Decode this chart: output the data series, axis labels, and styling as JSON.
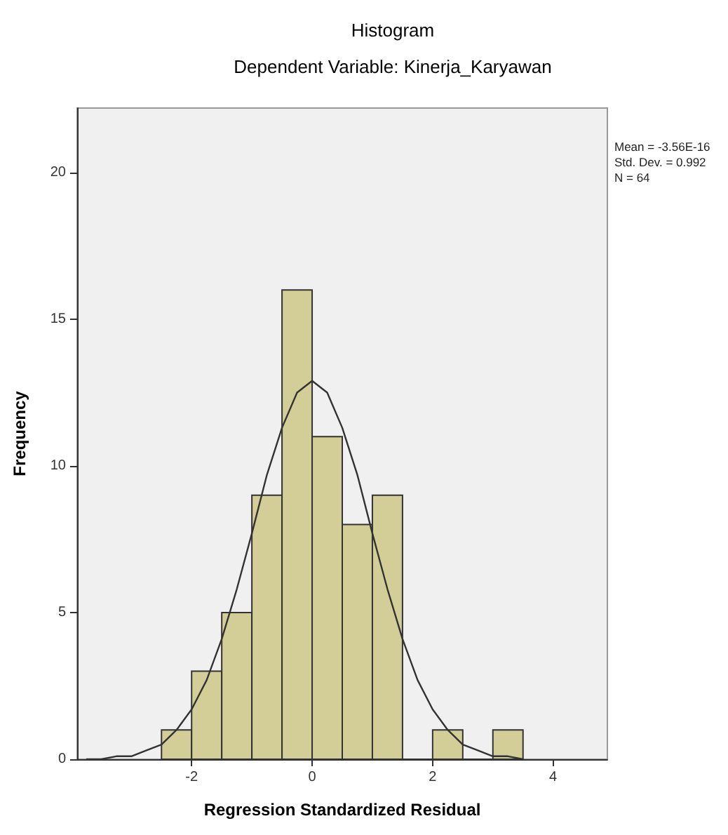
{
  "chart_data": {
    "type": "histogram",
    "title": "Histogram",
    "subtitle": "Dependent Variable: Kinerja_Karyawan",
    "xlabel": "Regression Standardized Residual",
    "ylabel": "Frequency",
    "annotations": [
      "Mean = -3.56E-16",
      "Std. Dev. = 0.992",
      "N = 64"
    ],
    "series": [
      {
        "bins": [
          -2.5,
          -2,
          -1.5,
          -1,
          -0.5,
          0,
          0.5,
          1,
          1.5,
          2,
          2.5,
          3,
          3.5
        ],
        "values": [
          1,
          3,
          5,
          9,
          16,
          11,
          8,
          9,
          0,
          1,
          0,
          1
        ],
        "color": "#d3ce98"
      },
      {
        "type": "line",
        "x": [
          -3.75,
          -3.5,
          -3.25,
          -3,
          -2.75,
          -2.5,
          -2.25,
          -2,
          -1.75,
          -1.5,
          -1.25,
          -1,
          -0.75,
          -0.5,
          -0.25,
          0,
          0.25,
          0.5,
          0.75,
          1,
          1.25,
          1.5,
          1.75,
          2,
          2.25,
          2.5,
          2.75,
          3,
          3.25,
          3.5
        ],
        "values": [
          0,
          0,
          0.1,
          0.1,
          0.3,
          0.5,
          1,
          1.7,
          2.7,
          4.1,
          5.8,
          7.7,
          9.7,
          11.3,
          12.5,
          12.9,
          12.5,
          11.3,
          9.7,
          7.7,
          5.8,
          4.1,
          2.7,
          1.7,
          1,
          0.5,
          0.3,
          0.1,
          0.1,
          0
        ],
        "color": "#333333"
      }
    ],
    "xlim": [
      -3.9,
      4.9
    ],
    "ylim": [
      0,
      22.2
    ],
    "xticks": [
      -2,
      0,
      2,
      4
    ],
    "yticks": [
      0,
      5,
      10,
      15,
      20
    ],
    "grid": false,
    "marker": "none",
    "line_style": "solid"
  }
}
